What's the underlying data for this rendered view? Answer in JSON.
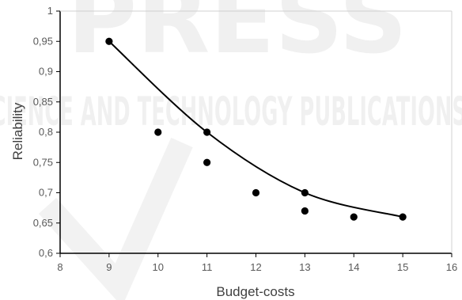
{
  "chart_data": {
    "type": "scatter",
    "xlabel": "Budget-costs",
    "ylabel": "Reliability",
    "xlim": [
      8,
      16
    ],
    "ylim": [
      0.6,
      1
    ],
    "x_ticks": [
      8,
      9,
      10,
      11,
      12,
      13,
      14,
      15,
      16
    ],
    "y_ticks": [
      0.6,
      0.65,
      0.7,
      0.75,
      0.8,
      0.85,
      0.9,
      0.95,
      1
    ],
    "x_tick_labels": [
      "8",
      "9",
      "10",
      "11",
      "12",
      "13",
      "14",
      "15",
      "16"
    ],
    "y_tick_labels": [
      "0,6",
      "0,65",
      "0,7",
      "0,75",
      "0,8",
      "0,85",
      "0,9",
      "0,95",
      "1"
    ],
    "grid": false,
    "series": [
      {
        "type": "scatter",
        "color": "#000000",
        "points": [
          {
            "x": 9,
            "y": 0.95
          },
          {
            "x": 10,
            "y": 0.8
          },
          {
            "x": 11,
            "y": 0.8
          },
          {
            "x": 11,
            "y": 0.75
          },
          {
            "x": 12,
            "y": 0.7
          },
          {
            "x": 13,
            "y": 0.7
          },
          {
            "x": 13,
            "y": 0.67
          },
          {
            "x": 14,
            "y": 0.66
          },
          {
            "x": 15,
            "y": 0.66
          }
        ]
      },
      {
        "type": "line",
        "color": "#000000",
        "smooth": true,
        "points": [
          {
            "x": 9,
            "y": 0.95
          },
          {
            "x": 11,
            "y": 0.8
          },
          {
            "x": 13,
            "y": 0.7
          },
          {
            "x": 15,
            "y": 0.66
          }
        ]
      }
    ]
  },
  "watermark": {
    "line1": "PRESS",
    "line2": "SCIENCE AND TECHNOLOGY PUBLICATIONS",
    "color": "#000000"
  }
}
